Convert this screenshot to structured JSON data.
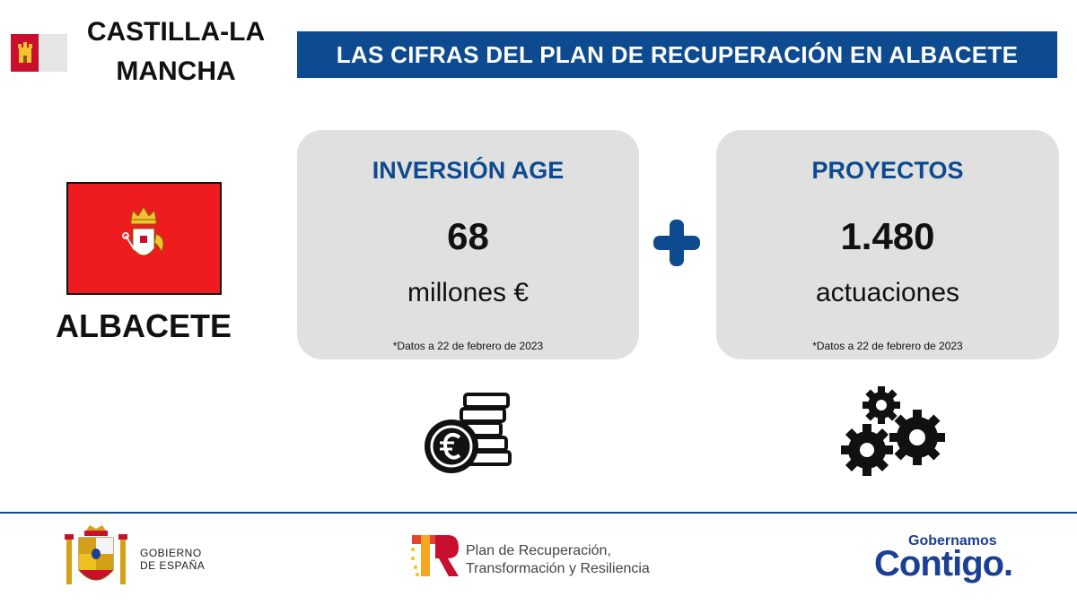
{
  "header": {
    "region_name": "CASTILLA-LA\nMANCHA",
    "title": "LAS CIFRAS DEL PLAN DE RECUPERACIÓN EN ALBACETE"
  },
  "city": {
    "name": "ALBACETE"
  },
  "cards": [
    {
      "heading": "INVERSIÓN AGE",
      "value": "68",
      "unit": "millones €",
      "note": "*Datos a 22 de febrero de 2023"
    },
    {
      "heading": "PROYECTOS",
      "value": "1.480",
      "unit": "actuaciones",
      "note": "*Datos a 22 de febrero de 2023"
    }
  ],
  "footer": {
    "gov_line1": "GOBIERNO",
    "gov_line2": "DE ESPAÑA",
    "prtr_line1": "Plan de Recuperación,",
    "prtr_line2": "Transformación y Resiliencia",
    "contigo_small": "Gobernamos",
    "contigo_big": "Contigo."
  },
  "icons": {
    "plus": "plus-icon",
    "coins": "euro-coins-icon",
    "gears": "gears-icon"
  },
  "colors": {
    "brand_blue": "#0d4a8f",
    "card_bg": "#e0e0e0",
    "flag_red": "#ee1c1f"
  }
}
